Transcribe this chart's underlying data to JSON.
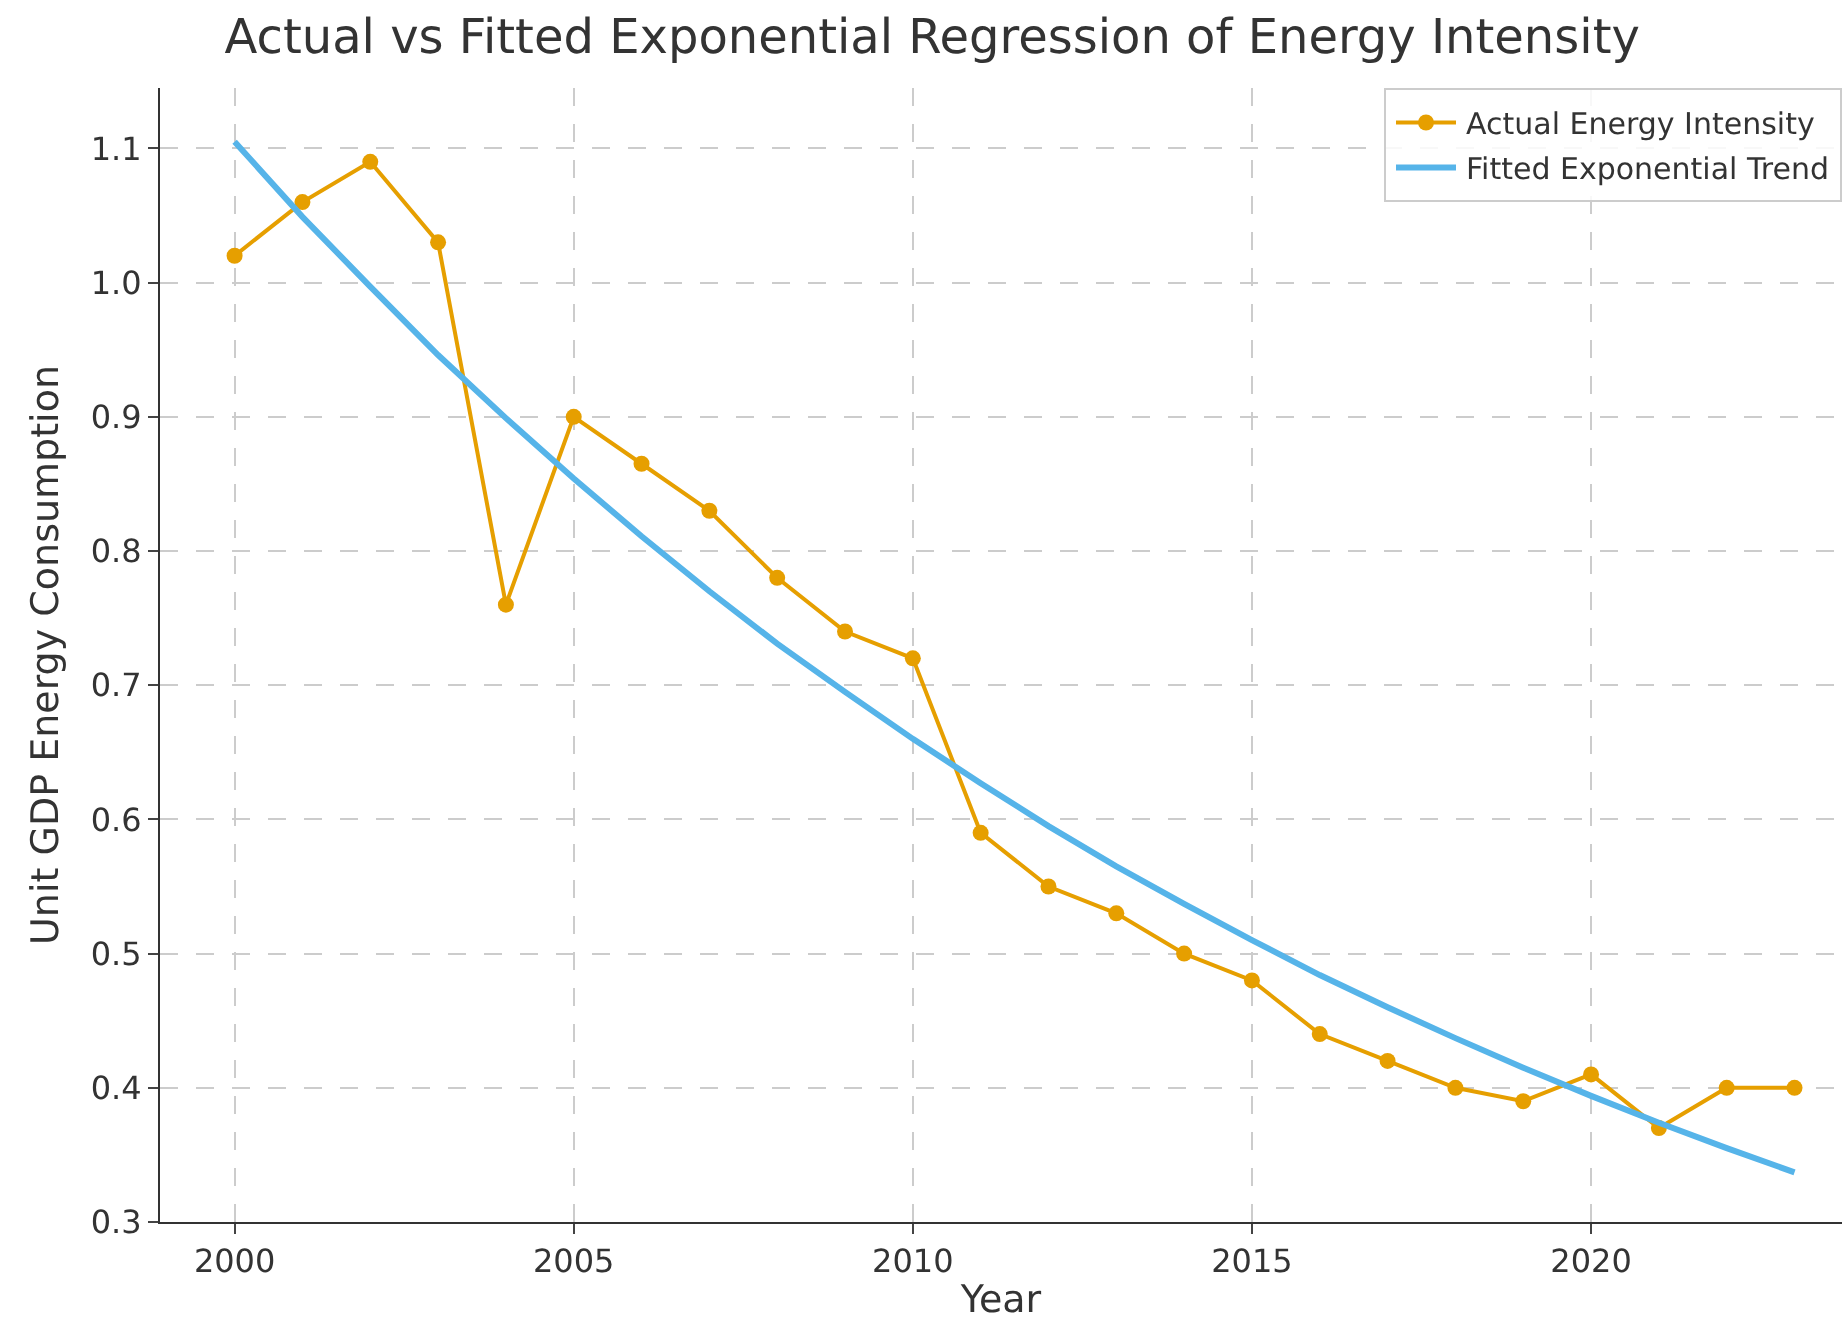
{
  "chart_data": {
    "type": "line",
    "title": "Actual vs Fitted Exponential Regression of Energy Intensity",
    "xlabel": "Year",
    "ylabel": "Unit GDP Energy Consumption",
    "x": [
      2000,
      2001,
      2002,
      2003,
      2004,
      2005,
      2006,
      2007,
      2008,
      2009,
      2010,
      2011,
      2012,
      2013,
      2014,
      2015,
      2016,
      2017,
      2018,
      2019,
      2020,
      2021,
      2022,
      2023
    ],
    "series": [
      {
        "name": "Actual Energy Intensity",
        "color": "#e69f00",
        "marker": "circle",
        "values": [
          1.02,
          1.06,
          1.09,
          1.03,
          0.76,
          0.9,
          0.865,
          0.83,
          0.78,
          0.74,
          0.72,
          0.59,
          0.55,
          0.53,
          0.5,
          0.48,
          0.44,
          0.42,
          0.4,
          0.39,
          0.41,
          0.37,
          0.4,
          0.4
        ]
      },
      {
        "name": "Fitted Exponential Trend",
        "color": "#56b4e9",
        "marker": "none",
        "values": [
          1.105,
          1.049,
          0.997,
          0.946,
          0.899,
          0.854,
          0.811,
          0.77,
          0.731,
          0.695,
          0.66,
          0.627,
          0.595,
          0.565,
          0.537,
          0.51,
          0.484,
          0.46,
          0.437,
          0.415,
          0.394,
          0.374,
          0.355,
          0.337
        ]
      }
    ],
    "xlim": [
      1998.9,
      2023.7
    ],
    "xticks": [
      2000,
      2005,
      2010,
      2015,
      2020
    ],
    "ylim": [
      0.3,
      1.145
    ],
    "yticks": [
      {
        "value": 0.3,
        "label": "0.3"
      },
      {
        "value": 0.4,
        "label": "0.4"
      },
      {
        "value": 0.5,
        "label": "0.5"
      },
      {
        "value": 0.6,
        "label": "0.6"
      },
      {
        "value": 0.7,
        "label": "0.7"
      },
      {
        "value": 0.8,
        "label": "0.8"
      },
      {
        "value": 0.9,
        "label": "0.9"
      },
      {
        "value": 1.0,
        "label": "1.0"
      },
      {
        "value": 1.1,
        "label": "1.1"
      }
    ],
    "grid": true,
    "legend": "top right",
    "line_style": "solid"
  }
}
